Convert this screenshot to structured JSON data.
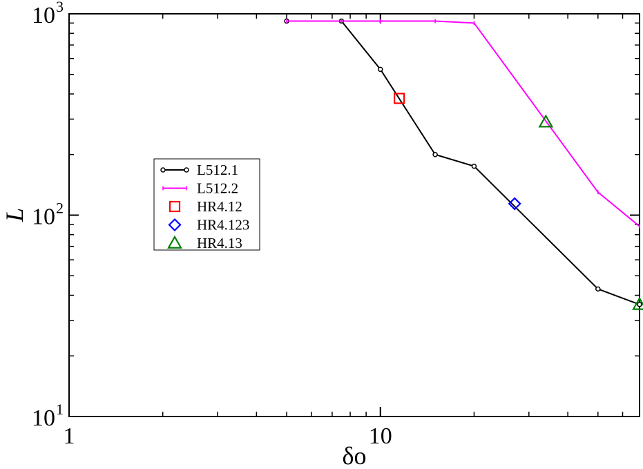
{
  "chart_data": {
    "type": "line",
    "title": "",
    "xlabel": "δo",
    "ylabel": "L",
    "xscale": "log",
    "yscale": "log",
    "xlim": [
      1,
      68
    ],
    "ylim": [
      10,
      1000
    ],
    "x_tick_labels": [
      {
        "value": 1,
        "label": "1"
      },
      {
        "value": 10,
        "label": "10"
      }
    ],
    "y_tick_labels": [
      {
        "value": 10,
        "base": "10",
        "exp": "1"
      },
      {
        "value": 100,
        "base": "10",
        "exp": "2"
      },
      {
        "value": 1000,
        "base": "10",
        "exp": "3"
      }
    ],
    "grid": false,
    "legend_position": "middle-left",
    "series": [
      {
        "name": "L512.1",
        "kind": "line",
        "marker": "circle",
        "color": "#000000",
        "x": [
          5,
          7.5,
          10,
          15,
          20,
          50,
          68
        ],
        "y": [
          920,
          920,
          530,
          200,
          175,
          43,
          36
        ]
      },
      {
        "name": "L512.2",
        "kind": "line",
        "marker": "tick",
        "color": "#ff00ff",
        "x": [
          5,
          7.5,
          10,
          15,
          20,
          50,
          68
        ],
        "y": [
          920,
          920,
          920,
          920,
          900,
          130,
          88
        ]
      },
      {
        "name": "HR4.12",
        "kind": "point",
        "marker": "square",
        "color": "#ff0000",
        "x": [
          11.5
        ],
        "y": [
          380
        ]
      },
      {
        "name": "HR4.123",
        "kind": "point",
        "marker": "diamond",
        "color": "#0000ff",
        "x": [
          27
        ],
        "y": [
          114
        ]
      },
      {
        "name": "HR4.13",
        "kind": "point",
        "marker": "triangle",
        "color": "#008000",
        "x": [
          34,
          68
        ],
        "y": [
          290,
          36
        ]
      }
    ]
  }
}
